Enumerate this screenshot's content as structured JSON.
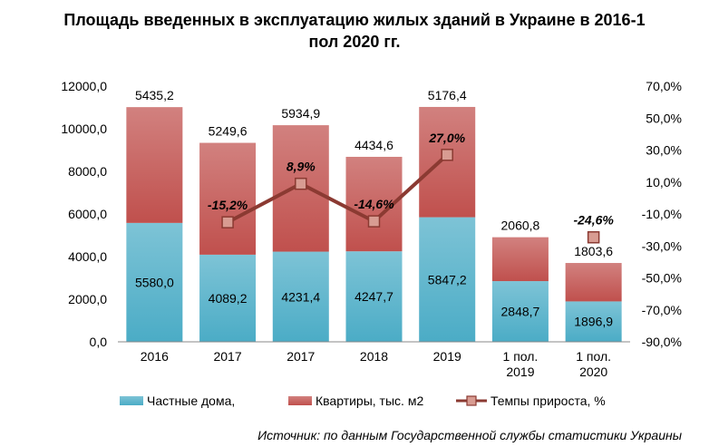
{
  "chart_data": {
    "type": "bar",
    "stacked": true,
    "title_lines": [
      "Площадь введенных в эксплуатацию жилых зданий в Украине в 2016-1",
      "пол 2020 гг."
    ],
    "categories": [
      [
        "2016"
      ],
      [
        "2017"
      ],
      [
        "2017"
      ],
      [
        "2018"
      ],
      [
        "2019"
      ],
      [
        "1 пол.",
        "2019"
      ],
      [
        "1 пол.",
        "2020"
      ]
    ],
    "series": [
      {
        "name": "Частные дома,",
        "color": "#4bacc6",
        "values": [
          5580.0,
          4089.2,
          4231.4,
          4247.7,
          5847.2,
          2848.7,
          1896.9
        ],
        "labels": [
          "5580,0",
          "4089,2",
          "4231,4",
          "4247,7",
          "5847,2",
          "2848,7",
          "1896,9"
        ]
      },
      {
        "name": "Квартиры, тыс. м2",
        "color": "#c0504d",
        "values": [
          5435.2,
          5249.6,
          5934.9,
          4434.6,
          5176.4,
          2060.8,
          1803.6
        ],
        "labels": [
          "5435,2",
          "5249,6",
          "5934,9",
          "4434,6",
          "5176,4",
          "2060,8",
          "1803,6"
        ]
      }
    ],
    "line": {
      "name": "Темпы прироста, %",
      "color": "#8b3a32",
      "points": [
        {
          "index": 1,
          "value": -15.2,
          "label": "-15,2%"
        },
        {
          "index": 2,
          "value": 8.9,
          "label": "8,9%"
        },
        {
          "index": 3,
          "value": -14.6,
          "label": "-14,6%"
        },
        {
          "index": 4,
          "value": 27.0,
          "label": "27,0%"
        },
        {
          "index": 6,
          "value": -24.6,
          "label": "-24,6%"
        }
      ],
      "connected_until_index": 4
    },
    "y_left": {
      "min": 0,
      "max": 12000,
      "step": 2000,
      "tick_labels": [
        "0,0",
        "2000,0",
        "4000,0",
        "6000,0",
        "8000,0",
        "10000,0",
        "12000,0"
      ]
    },
    "y_right": {
      "min": -90,
      "max": 70,
      "step": 20,
      "tick_labels": [
        "-90,0%",
        "-70,0%",
        "-50,0%",
        "-30,0%",
        "-10,0%",
        "10,0%",
        "30,0%",
        "50,0%",
        "70,0%"
      ]
    },
    "legend_position": "bottom",
    "grid": false
  },
  "source": "Источник: по данным Государственной службы статистики Украины"
}
